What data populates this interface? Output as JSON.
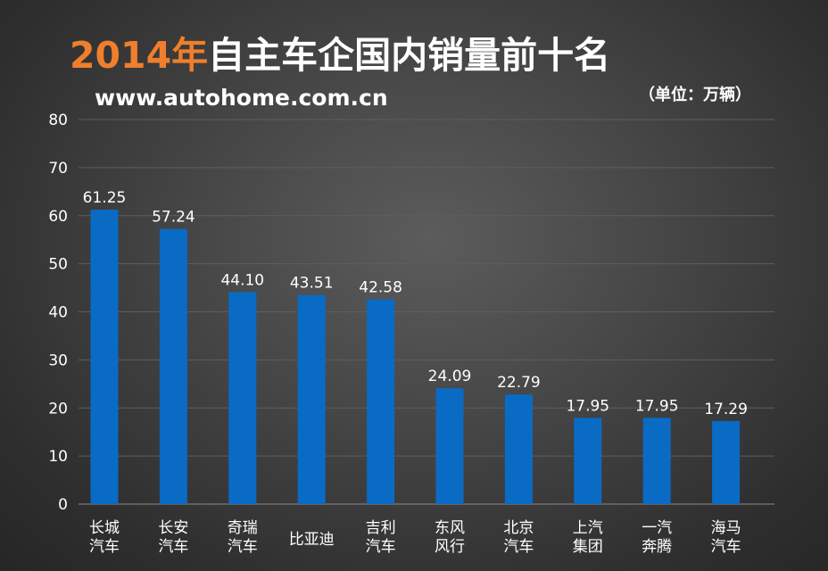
{
  "title": {
    "year": "2014年",
    "rest": "自主车企国内销量前十名"
  },
  "source_url": "www.autohome.com.cn",
  "unit_label": "（单位：万辆）",
  "colors": {
    "bar": "#0a6bc4",
    "title_accent": "#ef7f2c",
    "background": "#474747"
  },
  "chart_data": {
    "type": "bar",
    "title": "2014年自主车企国内销量前十名",
    "ylabel": "（单位：万辆）",
    "xlabel": "",
    "ylim": [
      0,
      80
    ],
    "yticks": [
      0,
      10,
      20,
      30,
      40,
      50,
      60,
      70,
      80
    ],
    "grid": true,
    "categories": [
      [
        "长城",
        "汽车"
      ],
      [
        "长安",
        "汽车"
      ],
      [
        "奇瑞",
        "汽车"
      ],
      [
        "比亚迪"
      ],
      [
        "吉利",
        "汽车"
      ],
      [
        "东风",
        "风行"
      ],
      [
        "北京",
        "汽车"
      ],
      [
        "上汽",
        "集团"
      ],
      [
        "一汽",
        "奔腾"
      ],
      [
        "海马",
        "汽车"
      ]
    ],
    "values": [
      61.25,
      57.24,
      44.1,
      43.51,
      42.58,
      24.09,
      22.79,
      17.95,
      17.95,
      17.29
    ],
    "value_labels": [
      "61.25",
      "57.24",
      "44.10",
      "43.51",
      "42.58",
      "24.09",
      "22.79",
      "17.95",
      "17.95",
      "17.29"
    ]
  }
}
